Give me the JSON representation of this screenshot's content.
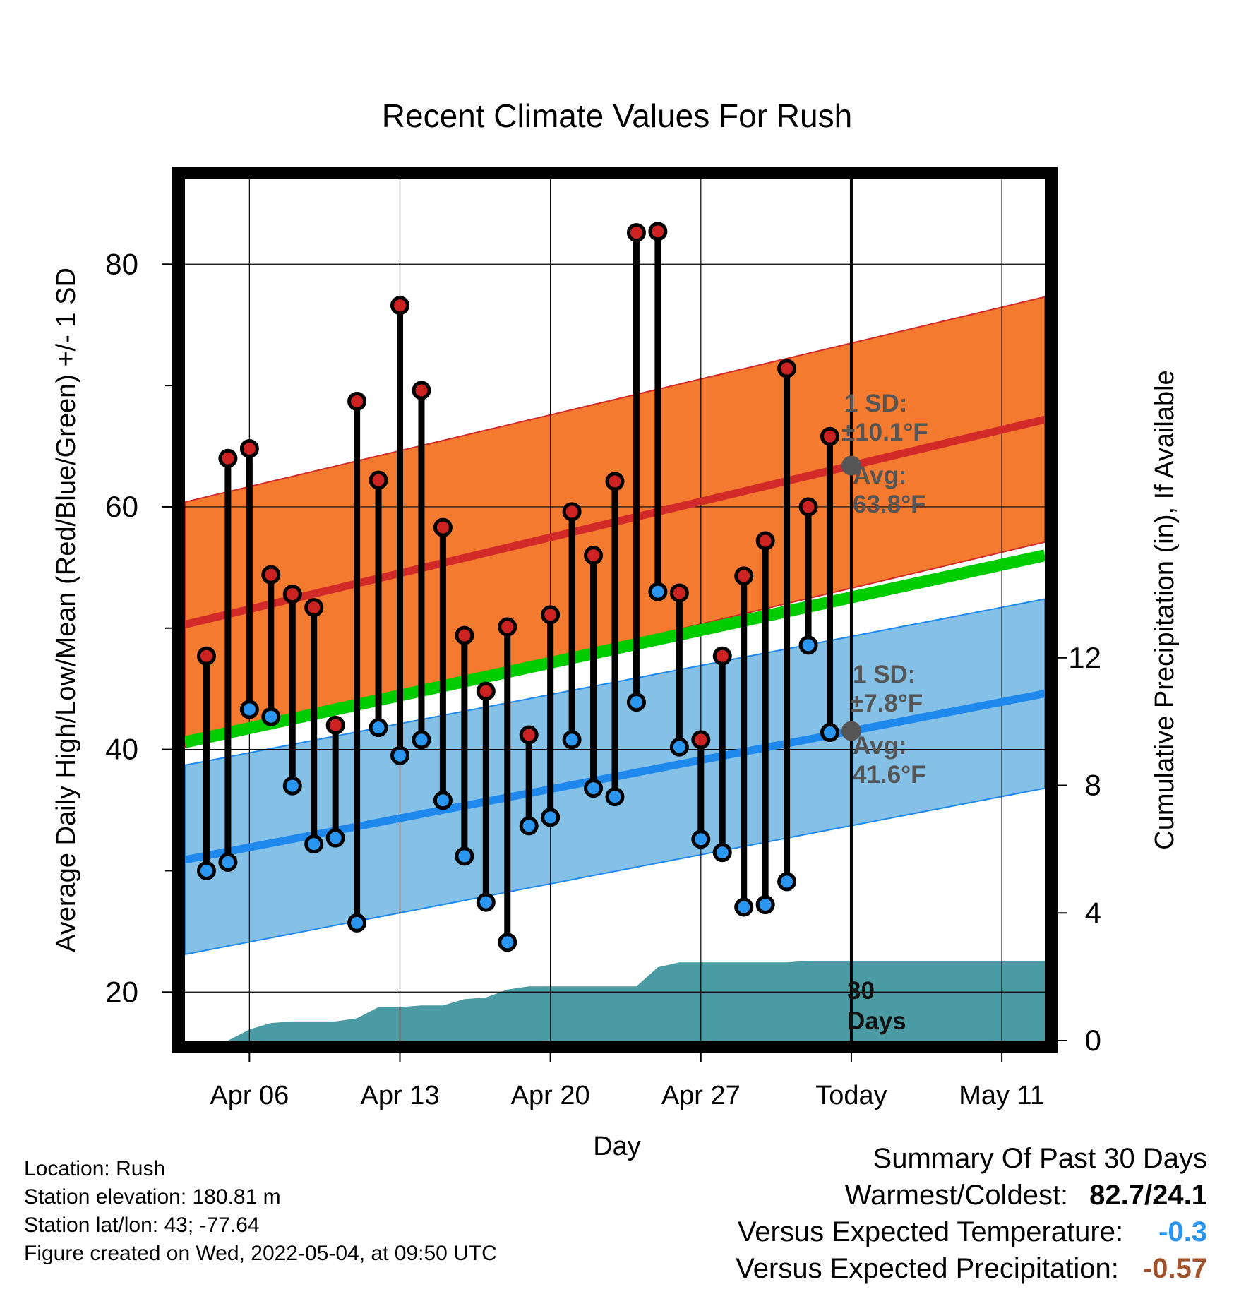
{
  "chart_data": {
    "type": "line",
    "title": "Recent Climate Values For Rush",
    "xlabel": "Day",
    "ylabel": "Average Daily High/Low/Mean (Red/Blue/Green) +/- 1 SD",
    "y2label": "Cumulative Precipitation (in), If Available",
    "xlim": [
      "2022-04-03",
      "2022-05-13"
    ],
    "ylim": [
      16,
      87
    ],
    "y2lim": [
      0,
      27
    ],
    "x_ticks": [
      "2022-04-06",
      "2022-04-13",
      "2022-04-20",
      "2022-04-27",
      "2022-05-04",
      "2022-05-11"
    ],
    "x_tick_labels": [
      "Apr 06",
      "Apr 13",
      "Apr 20",
      "Apr 27",
      "Today",
      "May 11"
    ],
    "y_ticks": [
      20,
      40,
      60,
      80
    ],
    "y2_ticks": [
      0,
      4,
      8,
      12
    ],
    "today": "2022-05-04",
    "dates": [
      "2022-04-04",
      "2022-04-05",
      "2022-04-06",
      "2022-04-07",
      "2022-04-08",
      "2022-04-09",
      "2022-04-10",
      "2022-04-11",
      "2022-04-12",
      "2022-04-13",
      "2022-04-14",
      "2022-04-15",
      "2022-04-16",
      "2022-04-17",
      "2022-04-18",
      "2022-04-19",
      "2022-04-20",
      "2022-04-21",
      "2022-04-22",
      "2022-04-23",
      "2022-04-24",
      "2022-04-25",
      "2022-04-26",
      "2022-04-27",
      "2022-04-28",
      "2022-04-29",
      "2022-04-30",
      "2022-05-01",
      "2022-05-02",
      "2022-05-03"
    ],
    "highs": [
      47.7,
      64.0,
      64.8,
      54.4,
      52.8,
      51.7,
      42.0,
      68.7,
      62.2,
      76.6,
      69.6,
      58.3,
      49.4,
      44.8,
      50.1,
      41.2,
      51.1,
      59.6,
      56.0,
      62.1,
      82.6,
      82.7,
      52.9,
      40.8,
      47.7,
      54.3,
      57.2,
      71.4,
      60.0,
      65.8
    ],
    "lows": [
      30.0,
      30.7,
      43.3,
      42.7,
      37.0,
      32.2,
      32.7,
      25.7,
      41.8,
      39.5,
      40.8,
      35.8,
      31.2,
      27.4,
      24.1,
      33.7,
      34.4,
      40.8,
      36.8,
      36.1,
      43.9,
      53.0,
      40.2,
      32.6,
      31.5,
      27.0,
      27.2,
      29.1,
      48.6,
      41.4
    ],
    "normal_high": {
      "start": 50.3,
      "end": 67.2,
      "sd": 10.1
    },
    "normal_low": {
      "start": 30.9,
      "end": 44.6,
      "sd": 7.8
    },
    "normal_mean": {
      "start": 40.6,
      "end": 56.0
    },
    "precip_cumulative": {
      "dates": [
        "2022-04-03",
        "2022-04-05",
        "2022-04-06",
        "2022-04-07",
        "2022-04-08",
        "2022-04-09",
        "2022-04-10",
        "2022-04-11",
        "2022-04-12",
        "2022-04-13",
        "2022-04-14",
        "2022-04-15",
        "2022-04-16",
        "2022-04-17",
        "2022-04-18",
        "2022-04-19",
        "2022-04-20",
        "2022-04-21",
        "2022-04-22",
        "2022-04-23",
        "2022-04-24",
        "2022-04-25",
        "2022-04-26",
        "2022-04-27",
        "2022-04-28",
        "2022-04-29",
        "2022-04-30",
        "2022-05-01",
        "2022-05-02",
        "2022-05-03",
        "2022-05-13"
      ],
      "values": [
        0,
        0,
        0.35,
        0.55,
        0.6,
        0.6,
        0.6,
        0.7,
        1.05,
        1.05,
        1.1,
        1.1,
        1.3,
        1.35,
        1.6,
        1.7,
        1.7,
        1.7,
        1.7,
        1.7,
        1.7,
        2.3,
        2.45,
        2.45,
        2.45,
        2.45,
        2.45,
        2.45,
        2.5,
        2.5,
        2.5
      ]
    },
    "annotations": {
      "high_sd": [
        "1 SD:",
        "±10.1°F"
      ],
      "high_avg": [
        "Avg:",
        "63.8°F"
      ],
      "low_sd": [
        "1 SD:",
        "±7.8°F"
      ],
      "low_avg": [
        "Avg:",
        "41.6°F"
      ],
      "days": [
        "30",
        "Days"
      ]
    },
    "colors": {
      "high_band": "#f47a30",
      "high_line": "#d12a28",
      "low_band": "#85c1e6",
      "low_line": "#1e88ec",
      "mean_line": "#00cc00",
      "precip": "#4a9ba3",
      "high_marker": "#cc2222",
      "low_marker": "#2b96f0",
      "today_marker": "#555555"
    }
  },
  "info": {
    "location": "Location: Rush",
    "elevation": "Station elevation: 180.81 m",
    "latlon": "Station lat/lon: 43; -77.64",
    "created": "Figure created on Wed, 2022-05-04, at 09:50 UTC"
  },
  "summary": {
    "title": "Summary Of Past 30 Days",
    "warmest_coldest_label": "Warmest/Coldest:",
    "warmest_coldest_value": "82.7/24.1",
    "temp_label": "Versus Expected Temperature:",
    "temp_value": "-0.3",
    "temp_color": "#2b96f0",
    "precip_label": "Versus Expected Precipitation:",
    "precip_value": "-0.57",
    "precip_color": "#a0522d"
  }
}
